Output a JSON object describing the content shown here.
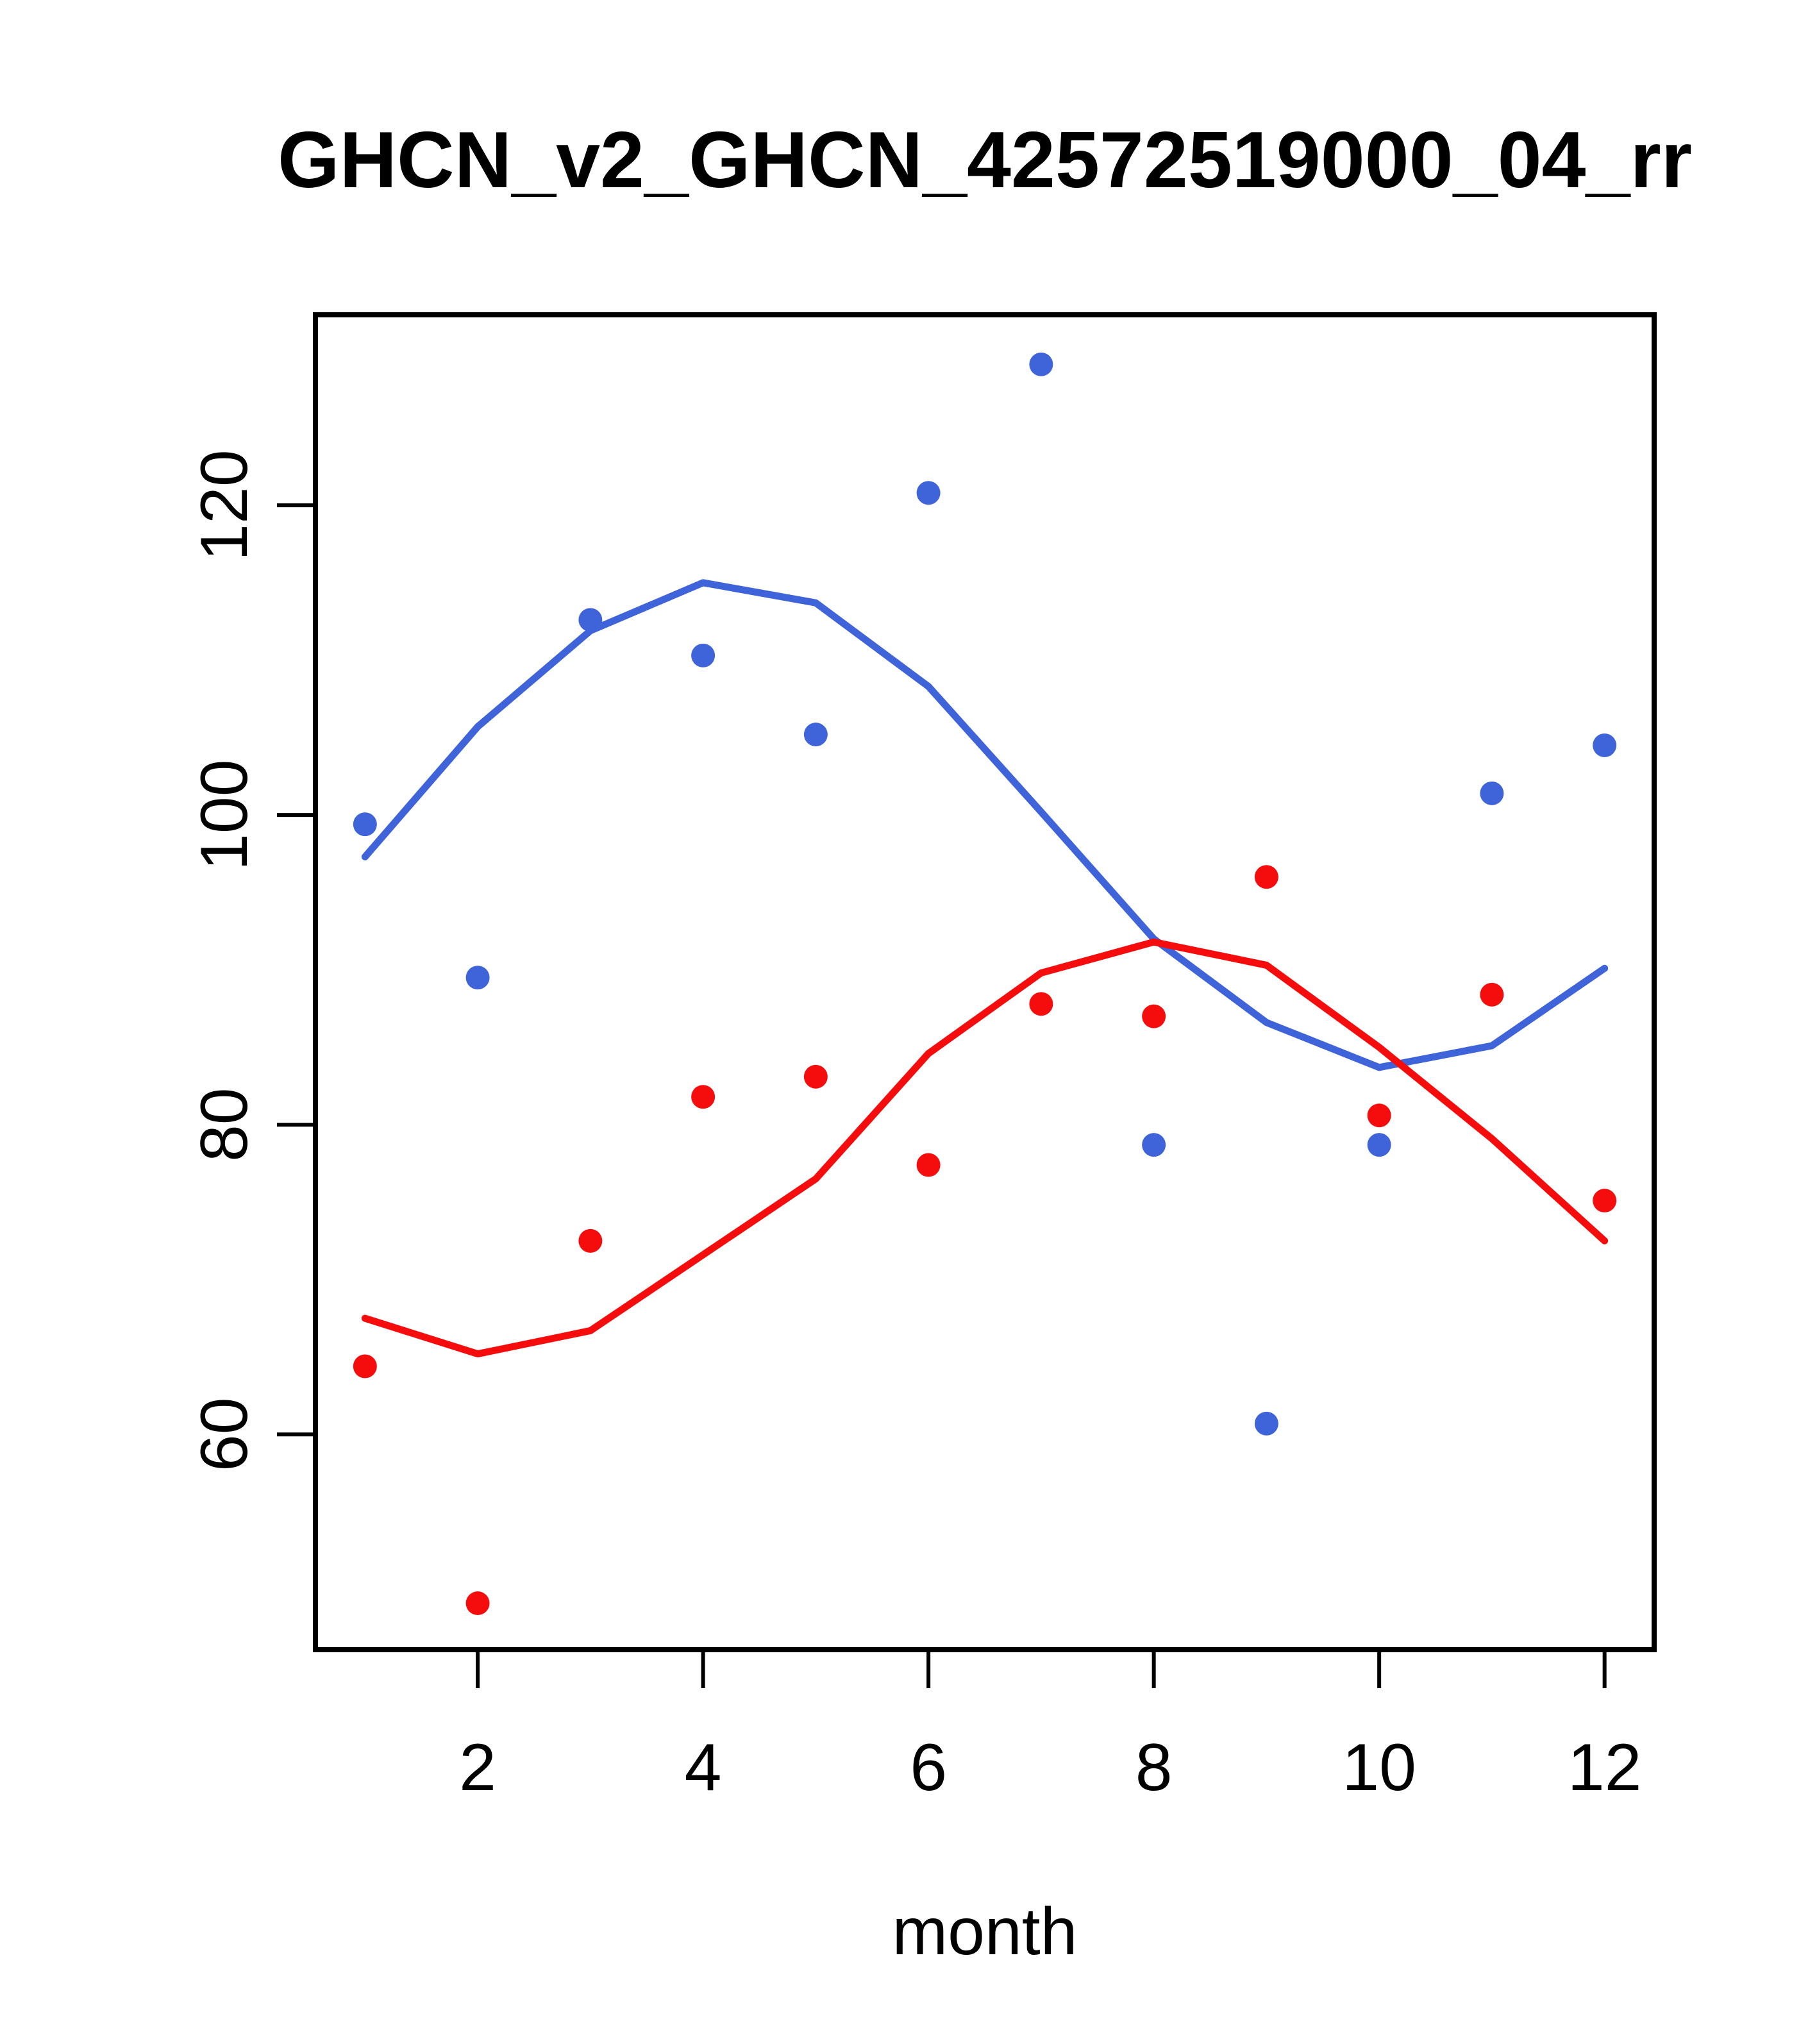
{
  "title": "GHCN_v2_GHCN_42572519000_04_rr",
  "chart_data": {
    "type": "scatter",
    "title": "GHCN_v2_GHCN_42572519000_04_rr",
    "xlabel": "month",
    "ylabel": "",
    "grid": false,
    "legend_position": "none",
    "xlim": [
      0.56,
      12.44
    ],
    "ylim": [
      46.1,
      132.3
    ],
    "x_ticks": [
      "2",
      "4",
      "6",
      "8",
      "10",
      "12"
    ],
    "x_tick_values": [
      2,
      4,
      6,
      8,
      10,
      12
    ],
    "y_ticks": [
      "60",
      "80",
      "100",
      "120"
    ],
    "y_tick_values": [
      60,
      80,
      100,
      120
    ],
    "frame_color": "#000000",
    "x": [
      1,
      2,
      3,
      4,
      5,
      6,
      7,
      8,
      9,
      10,
      11,
      12
    ],
    "series": [
      {
        "name": "blue-monthly-points",
        "kind": "points",
        "color": "#3F63D9",
        "values": [
          99.4,
          89.5,
          112.6,
          110.3,
          105.2,
          120.8,
          129.1,
          78.7,
          60.7,
          78.7,
          101.4,
          104.5
        ]
      },
      {
        "name": "red-monthly-points",
        "kind": "points",
        "color": "#F50D0D",
        "values": [
          64.4,
          49.1,
          72.5,
          81.8,
          83.1,
          77.4,
          87.8,
          87.0,
          96.0,
          80.6,
          88.4,
          75.1
        ]
      },
      {
        "name": "blue-lowess-line",
        "kind": "line",
        "color": "#3F63D9",
        "values": [
          97.3,
          105.7,
          111.9,
          115.0,
          113.7,
          108.3,
          100.2,
          92.0,
          86.6,
          83.7,
          85.1,
          90.1
        ]
      },
      {
        "name": "red-lowess-line",
        "kind": "line",
        "color": "#F50D0D",
        "values": [
          67.5,
          65.2,
          66.7,
          71.6,
          76.5,
          84.6,
          89.8,
          91.8,
          90.3,
          85.0,
          79.1,
          72.5
        ]
      }
    ]
  }
}
